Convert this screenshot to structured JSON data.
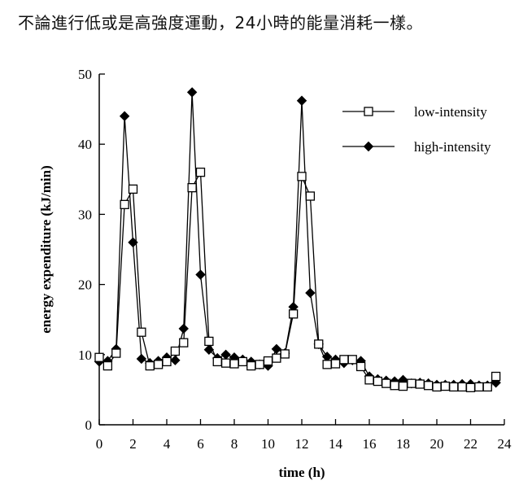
{
  "caption": "不論進行低或是高強度運動，24小時的能量消耗一樣。",
  "chart_data": {
    "type": "line",
    "title": "",
    "xlabel": "time (h)",
    "ylabel": "energy expenditure (kJ/min)",
    "xlim": [
      0,
      24
    ],
    "ylim": [
      0,
      50
    ],
    "xticks": [
      0,
      2,
      4,
      6,
      8,
      10,
      12,
      14,
      16,
      18,
      20,
      22,
      24
    ],
    "yticks": [
      0,
      10,
      20,
      30,
      40,
      50
    ],
    "grid": false,
    "legend_position": "top-right",
    "series": [
      {
        "name": "low-intensity",
        "marker": "open-square",
        "color": "#000000",
        "points": [
          [
            0,
            9.6
          ],
          [
            0.5,
            8.4
          ],
          [
            1,
            10.2
          ],
          [
            1.5,
            31.4
          ],
          [
            2,
            33.6
          ],
          [
            2.5,
            13.2
          ],
          [
            3,
            8.4
          ],
          [
            3.5,
            8.6
          ],
          [
            4,
            9.0
          ],
          [
            4.5,
            10.5
          ],
          [
            5,
            11.7
          ],
          [
            5.5,
            33.8
          ],
          [
            6,
            36.0
          ],
          [
            6.5,
            11.9
          ],
          [
            7,
            9.0
          ],
          [
            7.5,
            8.8
          ],
          [
            8,
            8.7
          ],
          [
            8.5,
            9.0
          ],
          [
            9,
            8.4
          ],
          [
            9.5,
            8.6
          ],
          [
            10,
            9.1
          ],
          [
            10.5,
            9.5
          ],
          [
            11,
            10.1
          ],
          [
            11.5,
            15.8
          ],
          [
            12,
            35.4
          ],
          [
            12.5,
            32.6
          ],
          [
            13,
            11.5
          ],
          [
            13.5,
            8.6
          ],
          [
            14,
            8.7
          ],
          [
            14.5,
            9.3
          ],
          [
            15,
            9.3
          ],
          [
            15.5,
            8.3
          ],
          [
            16,
            6.4
          ],
          [
            16.5,
            6.2
          ],
          [
            17,
            5.9
          ],
          [
            17.5,
            5.6
          ],
          [
            18,
            5.5
          ],
          [
            18.5,
            5.9
          ],
          [
            19,
            5.8
          ],
          [
            19.5,
            5.6
          ],
          [
            20,
            5.4
          ],
          [
            20.5,
            5.5
          ],
          [
            21,
            5.4
          ],
          [
            21.5,
            5.4
          ],
          [
            22,
            5.3
          ],
          [
            22.5,
            5.4
          ],
          [
            23,
            5.4
          ],
          [
            23.5,
            6.9
          ]
        ]
      },
      {
        "name": "high-intensity",
        "marker": "filled-diamond",
        "color": "#000000",
        "points": [
          [
            0,
            9.0
          ],
          [
            0.5,
            9.1
          ],
          [
            1,
            10.8
          ],
          [
            1.5,
            44.0
          ],
          [
            2,
            26.0
          ],
          [
            2.5,
            9.4
          ],
          [
            3,
            8.8
          ],
          [
            3.5,
            9.1
          ],
          [
            4,
            9.6
          ],
          [
            4.5,
            9.2
          ],
          [
            5,
            13.7
          ],
          [
            5.5,
            47.4
          ],
          [
            6,
            21.4
          ],
          [
            6.5,
            10.7
          ],
          [
            7,
            9.5
          ],
          [
            7.5,
            10.0
          ],
          [
            8,
            9.6
          ],
          [
            8.5,
            9.3
          ],
          [
            9,
            9.0
          ],
          [
            9.5,
            8.6
          ],
          [
            10,
            8.4
          ],
          [
            10.5,
            10.8
          ],
          [
            11,
            10.2
          ],
          [
            11.5,
            16.8
          ],
          [
            12,
            46.2
          ],
          [
            12.5,
            18.8
          ],
          [
            13,
            11.5
          ],
          [
            13.5,
            9.7
          ],
          [
            14,
            9.3
          ],
          [
            14.5,
            8.8
          ],
          [
            15,
            9.2
          ],
          [
            15.5,
            9.1
          ],
          [
            16,
            6.9
          ],
          [
            16.5,
            6.5
          ],
          [
            17,
            6.3
          ],
          [
            17.5,
            6.2
          ],
          [
            18,
            6.4
          ],
          [
            18.5,
            5.9
          ],
          [
            19,
            6.0
          ],
          [
            19.5,
            5.9
          ],
          [
            20,
            5.7
          ],
          [
            20.5,
            5.7
          ],
          [
            21,
            5.7
          ],
          [
            21.5,
            5.8
          ],
          [
            22,
            5.8
          ],
          [
            22.5,
            5.6
          ],
          [
            23,
            5.6
          ],
          [
            23.5,
            6.0
          ]
        ]
      }
    ]
  }
}
